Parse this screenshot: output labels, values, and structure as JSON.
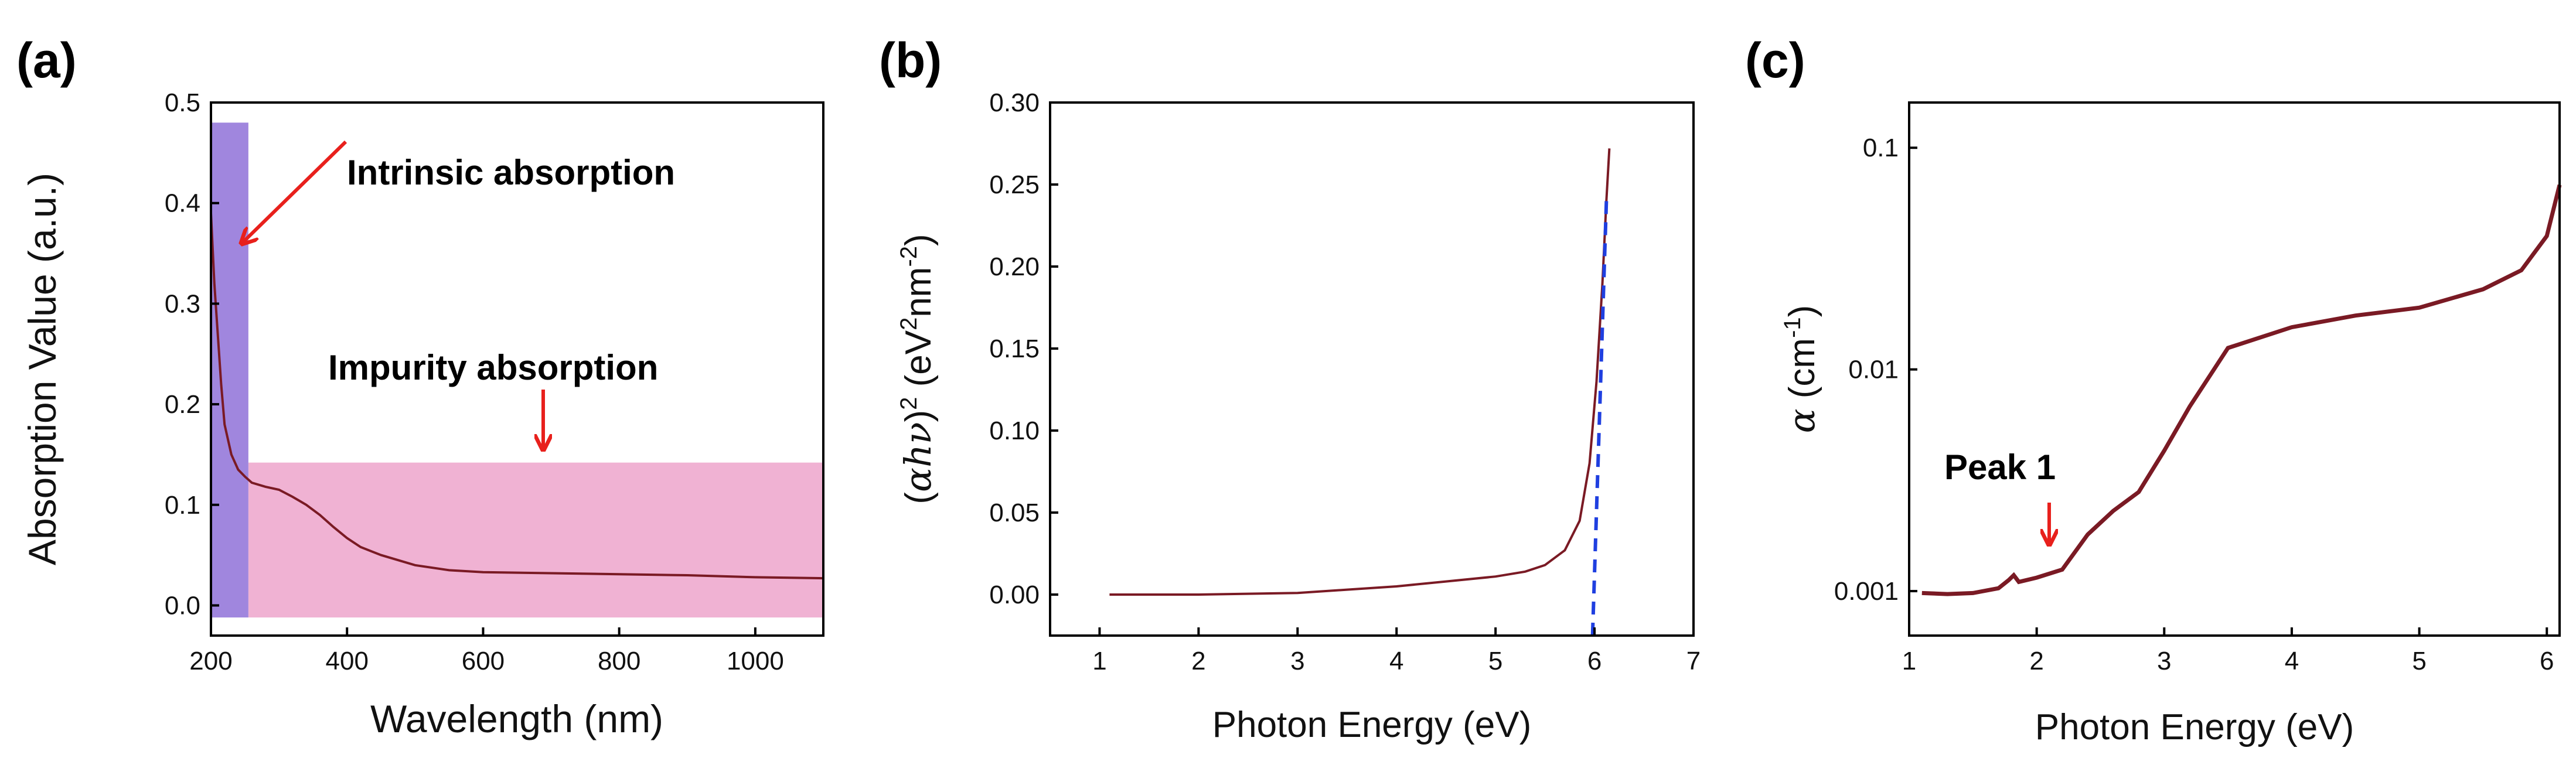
{
  "colors": {
    "curve": "#7a1a24",
    "intrinsic_band": "#9b80dc",
    "impurity_band": "#f0b2d3",
    "arrow": "#e8201c",
    "fit_line": "#1f3fe0"
  },
  "chart_data": [
    {
      "panel": "(a)",
      "type": "line",
      "xlabel": "Wavelength (nm)",
      "ylabel": "Absorption Value (a.u.)",
      "xlim": [
        200,
        1100
      ],
      "ylim": [
        -0.03,
        0.5
      ],
      "xticks": [
        200,
        400,
        600,
        800,
        1000
      ],
      "xtick_labels": [
        "200",
        "400",
        "600",
        "800",
        "1000"
      ],
      "yticks": [
        0.0,
        0.1,
        0.2,
        0.3,
        0.4,
        0.5
      ],
      "ytick_labels": [
        "0.0",
        "0.1",
        "0.2",
        "0.3",
        "0.4",
        "0.5"
      ],
      "series": [
        {
          "name": "absorption",
          "x": [
            200,
            205,
            210,
            215,
            220,
            230,
            240,
            250,
            260,
            280,
            300,
            320,
            340,
            360,
            380,
            400,
            420,
            450,
            500,
            550,
            600,
            700,
            800,
            900,
            1000,
            1100
          ],
          "y": [
            0.39,
            0.32,
            0.27,
            0.22,
            0.18,
            0.15,
            0.135,
            0.128,
            0.122,
            0.118,
            0.115,
            0.108,
            0.1,
            0.09,
            0.078,
            0.067,
            0.058,
            0.05,
            0.04,
            0.035,
            0.033,
            0.032,
            0.031,
            0.03,
            0.028,
            0.027
          ]
        }
      ],
      "bands": [
        {
          "name": "Intrinsic absorption band",
          "x_range": [
            200,
            255
          ],
          "y_range": [
            -0.012,
            0.48
          ]
        },
        {
          "name": "Impurity absorption band",
          "x_range": [
            255,
            1100
          ],
          "y_range": [
            -0.012,
            0.142
          ]
        }
      ],
      "annotations": [
        {
          "text": "Intrinsic absorption",
          "points_to": [
            255,
            0.36
          ]
        },
        {
          "text": "Impurity absorption",
          "points_to": [
            700,
            0.14
          ]
        }
      ]
    },
    {
      "panel": "(b)",
      "type": "line",
      "xlabel": "Photon Energy (eV)",
      "ylabel": "(αhν)² (eV²nm⁻²)",
      "ylabel_parts": {
        "open": "(",
        "var": "αhν",
        "close": ")",
        "sup": "2",
        "units_pre": " (eV",
        "units_sup1": "2",
        "units_mid": "nm",
        "units_sup2": "-2",
        "units_post": ")"
      },
      "xlim": [
        0.5,
        7
      ],
      "ylim": [
        -0.025,
        0.3
      ],
      "xticks": [
        1,
        2,
        3,
        4,
        5,
        6,
        7
      ],
      "xtick_labels": [
        "1",
        "2",
        "3",
        "4",
        "5",
        "6",
        "7"
      ],
      "yticks": [
        0.0,
        0.05,
        0.1,
        0.15,
        0.2,
        0.25,
        0.3
      ],
      "ytick_labels": [
        "0.00",
        "0.05",
        "0.10",
        "0.15",
        "0.20",
        "0.25",
        "0.30"
      ],
      "series": [
        {
          "name": "(αhν)²",
          "x": [
            1.1,
            2.0,
            3.0,
            3.5,
            4.0,
            4.5,
            5.0,
            5.3,
            5.5,
            5.7,
            5.85,
            5.95,
            6.02,
            6.08,
            6.12,
            6.15
          ],
          "y": [
            0.0,
            0.0,
            0.001,
            0.003,
            0.005,
            0.008,
            0.011,
            0.014,
            0.018,
            0.027,
            0.045,
            0.08,
            0.13,
            0.19,
            0.24,
            0.272
          ]
        },
        {
          "name": "linear fit",
          "style": "dashed",
          "x": [
            5.98,
            6.12
          ],
          "y": [
            -0.025,
            0.24
          ]
        }
      ]
    },
    {
      "panel": "(c)",
      "type": "line",
      "xlabel": "Photon Energy (eV)",
      "ylabel": "α (cm⁻¹)",
      "ylabel_parts": {
        "var": "α",
        "pre": " (cm",
        "sup": "-1",
        "post": ")"
      },
      "yscale": "log",
      "xlim": [
        1,
        6.1
      ],
      "ylim": [
        0.00063,
        0.16
      ],
      "xticks": [
        1,
        2,
        3,
        4,
        5,
        6
      ],
      "xtick_labels": [
        "1",
        "2",
        "3",
        "4",
        "5",
        "6"
      ],
      "yticks": [
        0.001,
        0.01,
        0.1
      ],
      "ytick_labels": [
        "0.001",
        "0.01",
        "0.1"
      ],
      "series": [
        {
          "name": "α",
          "x": [
            1.1,
            1.3,
            1.5,
            1.7,
            1.78,
            1.82,
            1.86,
            2.0,
            2.2,
            2.4,
            2.6,
            2.8,
            3.0,
            3.2,
            3.5,
            4.0,
            4.5,
            5.0,
            5.5,
            5.8,
            6.0,
            6.1
          ],
          "y": [
            0.00098,
            0.00097,
            0.00098,
            0.00103,
            0.00112,
            0.00118,
            0.0011,
            0.00115,
            0.00125,
            0.0018,
            0.0023,
            0.0028,
            0.0043,
            0.0068,
            0.0125,
            0.0155,
            0.0175,
            0.019,
            0.023,
            0.028,
            0.04,
            0.068
          ]
        }
      ],
      "annotations": [
        {
          "text": "Peak 1",
          "points_to": [
            1.8,
            0.00118
          ]
        }
      ]
    }
  ]
}
